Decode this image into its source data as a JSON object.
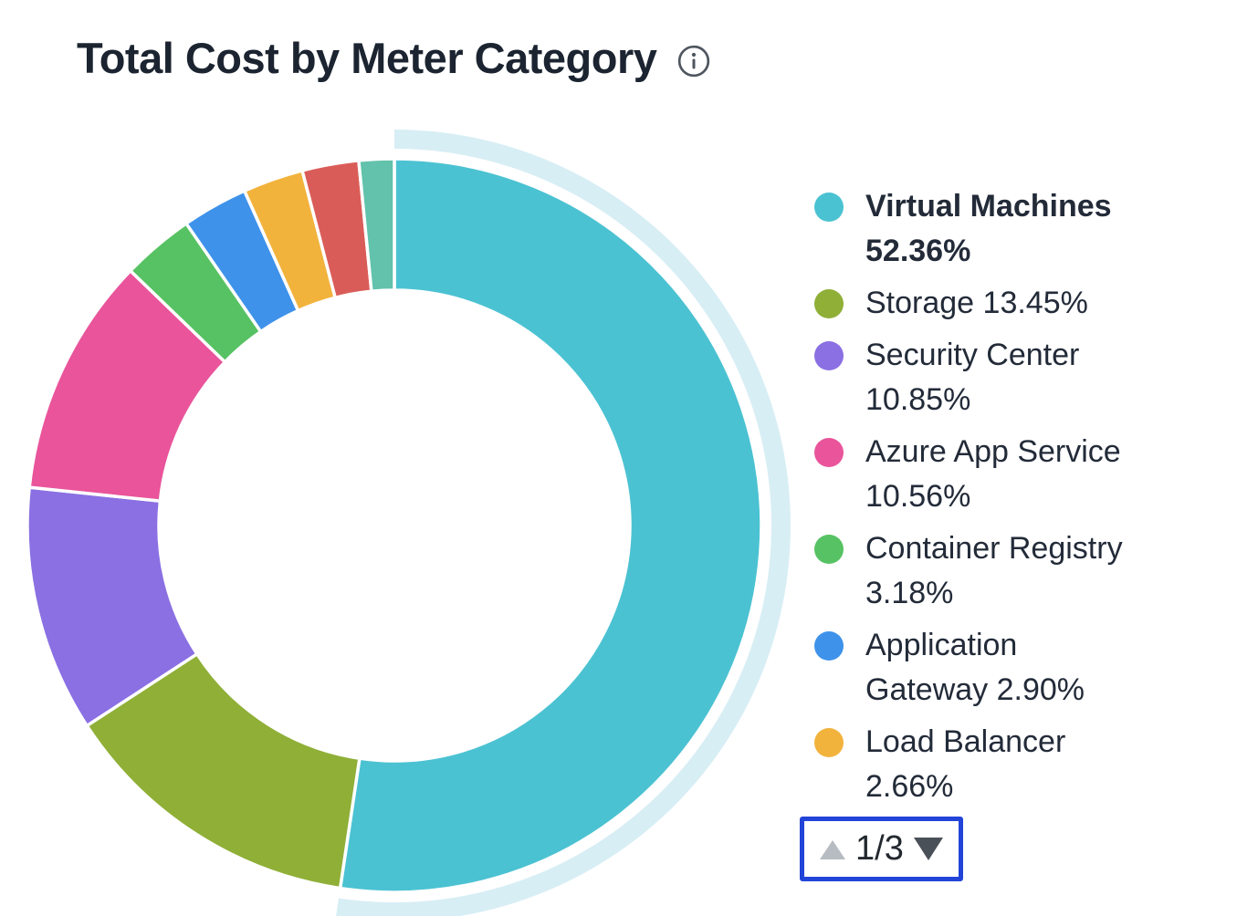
{
  "header": {
    "title": "Total Cost by Meter Category"
  },
  "chart_data": {
    "type": "pie",
    "donut": true,
    "title": "Total Cost by Meter Category",
    "start_angle_deg": 0,
    "direction": "clockwise",
    "legend_position": "right",
    "segments": [
      {
        "label": "Virtual Machines",
        "value": 52.36,
        "color": "#4BC2D2",
        "highlighted": true,
        "legend_visible": true
      },
      {
        "label": "Storage",
        "value": 13.45,
        "color": "#8FAF37",
        "highlighted": false,
        "legend_visible": true
      },
      {
        "label": "Security Center",
        "value": 10.85,
        "color": "#8A70E3",
        "highlighted": false,
        "legend_visible": true
      },
      {
        "label": "Azure App Service",
        "value": 10.56,
        "color": "#E9549B",
        "highlighted": false,
        "legend_visible": true
      },
      {
        "label": "Container Registry",
        "value": 3.18,
        "color": "#57C263",
        "highlighted": false,
        "legend_visible": true
      },
      {
        "label": "Application Gateway",
        "value": 2.9,
        "color": "#3E92EA",
        "highlighted": false,
        "legend_visible": true
      },
      {
        "label": "Load Balancer",
        "value": 2.66,
        "color": "#F2B33D",
        "highlighted": false,
        "legend_visible": true
      },
      {
        "label": "",
        "value": 2.49,
        "color": "#DA5C58",
        "highlighted": false,
        "legend_visible": false
      },
      {
        "label": "",
        "value": 1.55,
        "color": "#62C2AB",
        "highlighted": false,
        "legend_visible": false
      }
    ]
  },
  "legend": {
    "items": [
      {
        "lines": [
          "Virtual Machines",
          "52.36%"
        ],
        "color": "#4BC2D2",
        "bold": true
      },
      {
        "lines": [
          "Storage 13.45%"
        ],
        "color": "#8FAF37",
        "bold": false
      },
      {
        "lines": [
          "Security Center",
          "10.85%"
        ],
        "color": "#8A70E3",
        "bold": false
      },
      {
        "lines": [
          "Azure App Service",
          "10.56%"
        ],
        "color": "#E9549B",
        "bold": false
      },
      {
        "lines": [
          "Container Registry",
          "3.18%"
        ],
        "color": "#57C263",
        "bold": false
      },
      {
        "lines": [
          "Application",
          "Gateway 2.90%"
        ],
        "color": "#3E92EA",
        "bold": false
      },
      {
        "lines": [
          "Load Balancer",
          "2.66%"
        ],
        "color": "#F2B33D",
        "bold": false
      }
    ]
  },
  "pagination": {
    "label": "1/3",
    "up_icon": "up-triangle-icon",
    "down_icon": "down-triangle-icon"
  },
  "colors": {
    "title_text": "#1B2430",
    "legend_text": "#232B39",
    "highlight_arc": "#D8EEF5",
    "focus_border": "#2244D8",
    "pagination_up": "#B7BBC2",
    "pagination_down": "#4A5058",
    "pagination_text": "#23282F",
    "info_icon": "#4F565F"
  }
}
